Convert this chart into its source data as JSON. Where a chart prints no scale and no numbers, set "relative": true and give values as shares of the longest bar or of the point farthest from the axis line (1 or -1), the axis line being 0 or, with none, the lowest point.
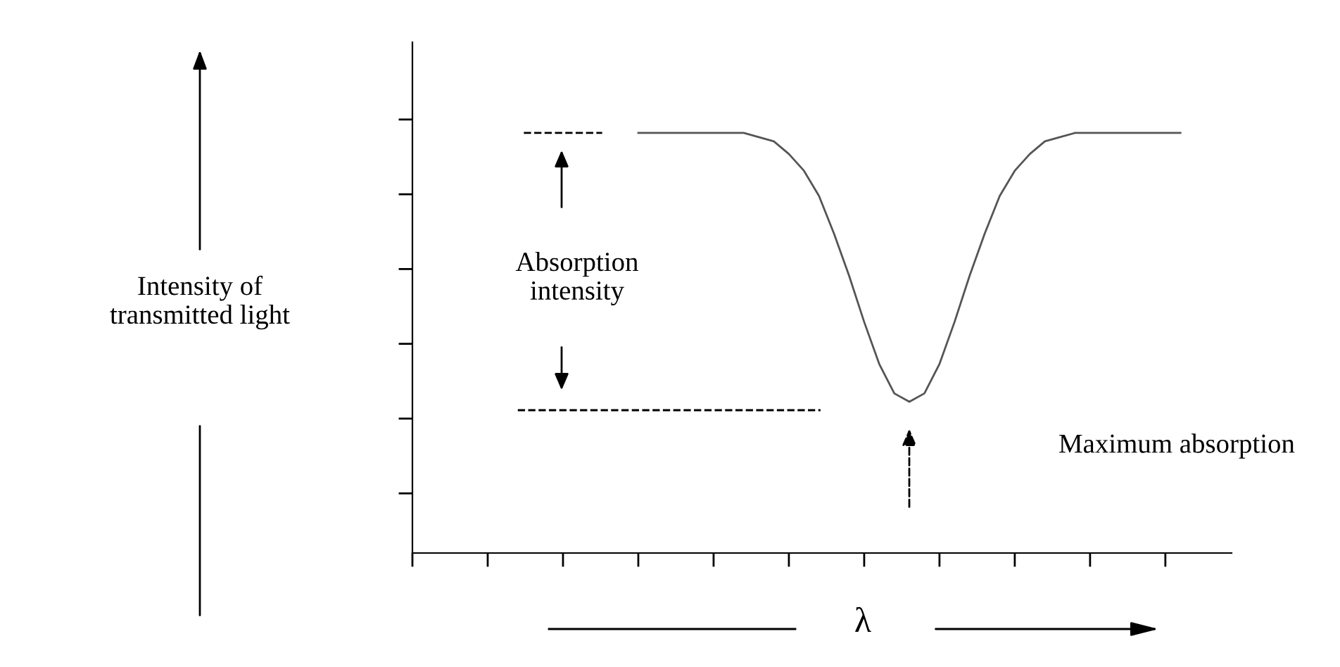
{
  "chart_data": {
    "type": "line",
    "relative": true,
    "xlabel": "λ",
    "ylabel": "Intensity of\ntransmitted light",
    "categories": [
      null,
      null,
      null,
      null,
      null,
      null,
      null,
      null,
      null,
      null,
      null,
      null,
      null,
      null,
      null,
      null,
      null,
      null,
      null,
      null,
      null,
      null,
      null,
      null,
      null,
      null,
      null,
      null,
      null,
      null,
      null,
      null,
      null,
      null,
      null,
      null,
      null,
      null,
      null,
      null,
      null,
      null,
      null,
      null,
      null,
      null,
      null,
      null,
      null,
      null,
      null,
      null,
      null,
      null,
      null
    ],
    "series": [
      {
        "color": "#555555",
        "values": [
          null,
          null,
          null,
          null,
          null,
          null,
          null,
          null,
          null,
          null,
          null,
          null,
          null,
          null,
          null,
          1,
          1,
          1,
          1,
          1,
          1,
          1,
          1,
          0.99,
          0.98,
          0.95,
          0.91,
          0.85,
          0.76,
          0.66,
          0.55,
          0.45,
          0.38,
          0.36,
          0.38,
          0.45,
          0.55,
          0.66,
          0.76,
          0.85,
          0.91,
          0.95,
          0.98,
          0.99,
          1,
          1,
          1,
          1,
          1,
          1,
          1,
          1,
          null,
          null,
          null
        ]
      }
    ],
    "ref_lines": [
      {
        "axis": "y",
        "value": 1,
        "color": "#000000",
        "line_style": "dashed"
      },
      {
        "axis": "y",
        "value": 0.34,
        "color": "#000000",
        "line_style": "dashed"
      }
    ],
    "annotations": [
      "Absorption\nintensity",
      "Maximum absorption"
    ],
    "tick_labels": false,
    "grid": false,
    "legend": false,
    "marker": "none",
    "line_style": "solid"
  }
}
